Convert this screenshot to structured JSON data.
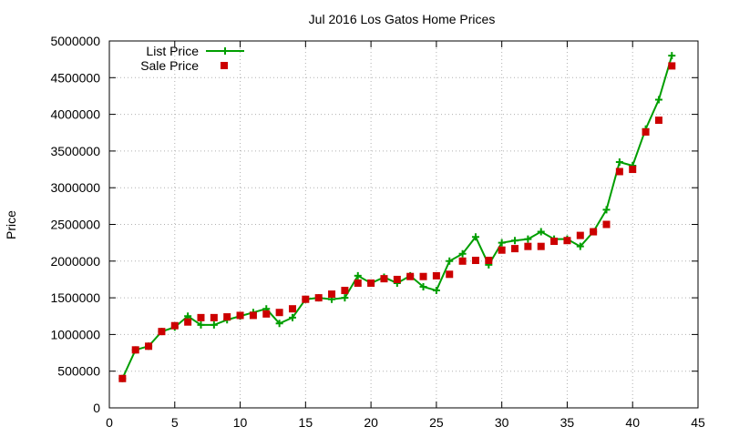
{
  "chart_data": {
    "type": "line",
    "title": "Jul 2016 Los Gatos Home Prices",
    "xlabel": "",
    "ylabel": "Price",
    "xlim": [
      0,
      45
    ],
    "ylim": [
      0,
      5000000
    ],
    "xticks": [
      "0",
      "5",
      "10",
      "15",
      "20",
      "25",
      "30",
      "35",
      "40",
      "45"
    ],
    "yticks": [
      "0",
      "500000",
      "1000000",
      "1500000",
      "2000000",
      "2500000",
      "3000000",
      "3500000",
      "4000000",
      "4500000",
      "5000000"
    ],
    "grid": true,
    "legend_position": "top-left",
    "x": [
      1,
      2,
      3,
      4,
      5,
      6,
      7,
      8,
      9,
      10,
      11,
      12,
      13,
      14,
      15,
      16,
      17,
      18,
      19,
      20,
      21,
      22,
      23,
      24,
      25,
      26,
      27,
      28,
      29,
      30,
      31,
      32,
      33,
      34,
      35,
      36,
      37,
      38,
      39,
      40,
      41,
      42,
      43
    ],
    "series": [
      {
        "name": "List Price",
        "style": "line-points",
        "color": "#009e00",
        "values": [
          400000,
          790000,
          840000,
          1040000,
          1100000,
          1250000,
          1130000,
          1130000,
          1200000,
          1250000,
          1300000,
          1350000,
          1150000,
          1230000,
          1480000,
          1500000,
          1480000,
          1500000,
          1800000,
          1700000,
          1780000,
          1700000,
          1800000,
          1650000,
          1600000,
          2000000,
          2100000,
          2330000,
          1950000,
          2250000,
          2280000,
          2300000,
          2400000,
          2300000,
          2300000,
          2200000,
          2400000,
          2700000,
          3350000,
          3300000,
          3800000,
          4200000,
          4800000
        ]
      },
      {
        "name": "Sale Price",
        "style": "points",
        "color": "#cc0000",
        "values": [
          400000,
          790000,
          840000,
          1040000,
          1120000,
          1170000,
          1230000,
          1230000,
          1240000,
          1260000,
          1260000,
          1280000,
          1300000,
          1350000,
          1480000,
          1500000,
          1550000,
          1600000,
          1700000,
          1700000,
          1760000,
          1750000,
          1790000,
          1790000,
          1800000,
          1820000,
          2000000,
          2010000,
          2010000,
          2150000,
          2170000,
          2200000,
          2200000,
          2270000,
          2280000,
          2350000,
          2400000,
          2500000,
          3220000,
          3250000,
          3760000,
          3920000,
          4660000
        ]
      }
    ]
  }
}
